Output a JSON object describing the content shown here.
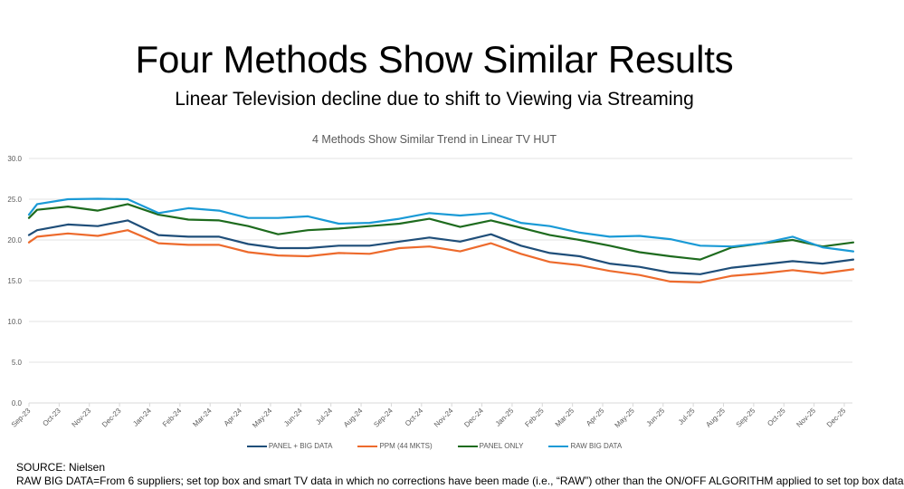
{
  "slide": {
    "title": "Four Methods Show Similar Results",
    "subtitle": "Linear Television decline due to shift to Viewing via Streaming",
    "footer_source": "SOURCE: Nielsen",
    "footer_note": "RAW BIG DATA=From 6 suppliers; set top box and smart TV data in which no corrections have been made (i.e., “RAW”) other than the ON/OFF ALGORITHM applied to set top box data"
  },
  "chart_data": {
    "type": "line",
    "title": "4 Methods Show Similar Trend in Linear TV HUT",
    "xlabel": "",
    "ylabel": "",
    "ylim": [
      0,
      30
    ],
    "yticks": [
      "0.0",
      "5.0",
      "10.0",
      "15.0",
      "20.0",
      "25.0",
      "30.0"
    ],
    "ytick_values": [
      0,
      5,
      10,
      15,
      20,
      25,
      30
    ],
    "grid": true,
    "legend_position": "bottom",
    "categories": [
      "Sep-23",
      "Oct-23",
      "Nov-23",
      "Dec-23",
      "Jan-24",
      "Feb-24",
      "Mar-24",
      "Apr-24",
      "May-24",
      "Jun-24",
      "Jul-24",
      "Aug-24",
      "Sep-24",
      "Oct-24",
      "Nov-24",
      "Dec-24",
      "Jan-25",
      "Feb-25",
      "Mar-25",
      "Apr-25",
      "May-25",
      "Jun-25",
      "Jul-25",
      "Aug-25",
      "Sep-25",
      "Oct-25",
      "Nov-25",
      "Dec-25"
    ],
    "x_months": [
      0,
      0.27,
      1.29,
      2.28,
      3.27,
      4.29,
      5.28,
      6.3,
      7.26,
      8.25,
      9.24,
      10.26,
      11.28,
      12.27,
      13.26,
      14.28,
      15.3,
      16.29,
      17.25,
      18.24,
      19.23,
      20.22,
      21.24,
      22.23,
      23.28,
      24.3,
      25.29,
      26.28,
      27.3
    ],
    "series": [
      {
        "name": "PANEL + BIG DATA",
        "color": "#1f4e79",
        "values": [
          20.6,
          21.2,
          21.9,
          21.7,
          22.4,
          20.6,
          20.4,
          20.4,
          19.5,
          19.0,
          19.0,
          19.3,
          19.3,
          19.8,
          20.3,
          19.8,
          20.7,
          19.3,
          18.4,
          18.0,
          17.1,
          16.7,
          16.0,
          15.8,
          16.6,
          17.0,
          17.4,
          17.1,
          17.6
        ]
      },
      {
        "name": "PPM (44 MKTS)",
        "color": "#ed6a2c",
        "values": [
          19.7,
          20.4,
          20.8,
          20.5,
          21.2,
          19.6,
          19.4,
          19.4,
          18.5,
          18.1,
          18.0,
          18.4,
          18.3,
          19.0,
          19.2,
          18.6,
          19.6,
          18.3,
          17.3,
          16.9,
          16.2,
          15.7,
          14.9,
          14.8,
          15.6,
          15.9,
          16.3,
          15.9,
          16.4
        ]
      },
      {
        "name": "PANEL ONLY",
        "color": "#1e6b1e",
        "values": [
          22.7,
          23.7,
          24.1,
          23.6,
          24.4,
          23.1,
          22.5,
          22.4,
          21.7,
          20.7,
          21.2,
          21.4,
          21.7,
          22.0,
          22.6,
          21.6,
          22.4,
          21.5,
          20.6,
          20.0,
          19.3,
          18.5,
          18.0,
          17.6,
          19.1,
          19.6,
          20.0,
          19.2,
          19.7
        ]
      },
      {
        "name": "RAW BIG DATA",
        "color": "#1a9ad6",
        "values": [
          23.1,
          24.4,
          25.0,
          25.05,
          25.0,
          23.3,
          23.9,
          23.6,
          22.7,
          22.7,
          22.9,
          22.0,
          22.1,
          22.6,
          23.3,
          23.0,
          23.3,
          22.1,
          21.7,
          20.9,
          20.4,
          20.5,
          20.1,
          19.3,
          19.2,
          19.6,
          20.4,
          19.1,
          18.6
        ]
      }
    ]
  }
}
